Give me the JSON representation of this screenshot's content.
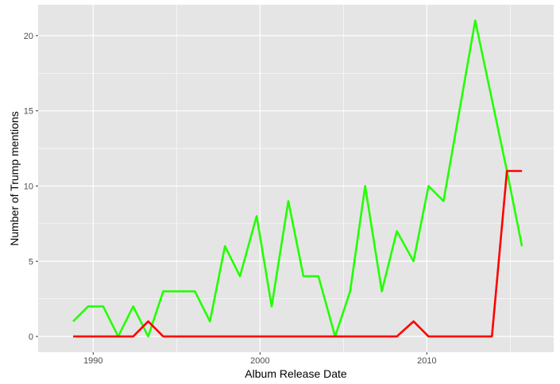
{
  "chart_data": {
    "type": "line",
    "title": "",
    "xlabel": "Album Release Date",
    "ylabel": "Number of Trump mentions",
    "xlim": [
      1986.7,
      2017.6
    ],
    "ylim": [
      -1.05,
      22.05
    ],
    "x_ticks": [
      1990,
      2000,
      2010
    ],
    "x_tick_labels": [
      "1990",
      "2000",
      "2010"
    ],
    "y_ticks": [
      0,
      5,
      10,
      15,
      20
    ],
    "y_tick_labels": [
      "0",
      "5",
      "10",
      "15",
      "20"
    ],
    "grid": true,
    "legend": "none",
    "background_color": "#e5e5e5",
    "grid_color": "#ffffff",
    "series": [
      {
        "color": "#22ff00",
        "points": [
          [
            1988.8,
            1
          ],
          [
            1989.7,
            2
          ],
          [
            1990.6,
            2
          ],
          [
            1991.5,
            0
          ],
          [
            1992.4,
            2
          ],
          [
            1993.3,
            0
          ],
          [
            1994.2,
            3
          ],
          [
            1995.1,
            3
          ],
          [
            1996.1,
            3
          ],
          [
            1997.0,
            1
          ],
          [
            1997.9,
            6
          ],
          [
            1998.8,
            4
          ],
          [
            1999.8,
            8
          ],
          [
            2000.7,
            2
          ],
          [
            2001.7,
            9
          ],
          [
            2002.6,
            4
          ],
          [
            2003.5,
            4
          ],
          [
            2004.5,
            0
          ],
          [
            2005.4,
            3
          ],
          [
            2006.3,
            10
          ],
          [
            2007.3,
            3
          ],
          [
            2008.2,
            7
          ],
          [
            2009.2,
            5
          ],
          [
            2010.1,
            10
          ],
          [
            2011.0,
            9
          ],
          [
            2012.9,
            21
          ],
          [
            2014.8,
            11
          ],
          [
            2015.7,
            6
          ]
        ]
      },
      {
        "color": "#ff0000",
        "points": [
          [
            1988.8,
            0
          ],
          [
            1990.6,
            0
          ],
          [
            1991.5,
            0
          ],
          [
            1992.4,
            0
          ],
          [
            1993.3,
            1
          ],
          [
            1994.2,
            0
          ],
          [
            2007.3,
            0
          ],
          [
            2008.2,
            0
          ],
          [
            2009.2,
            1
          ],
          [
            2010.1,
            0
          ],
          [
            2013.9,
            0
          ],
          [
            2014.8,
            11
          ],
          [
            2015.7,
            11
          ]
        ]
      }
    ]
  }
}
